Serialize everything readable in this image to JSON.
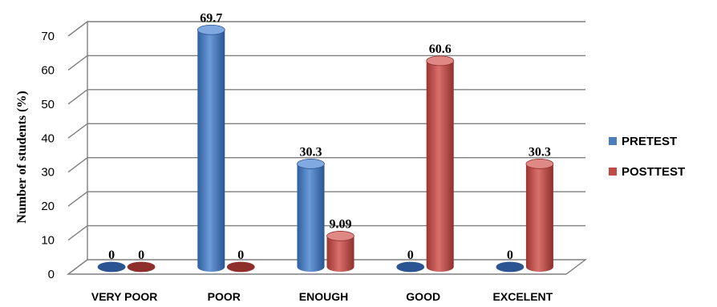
{
  "chart_data": {
    "type": "bar",
    "title": "",
    "xlabel": "",
    "ylabel": "Number of students (%)",
    "ylim": [
      0,
      70
    ],
    "yticks": [
      "0",
      "10",
      "20",
      "30",
      "40",
      "50",
      "60",
      "70"
    ],
    "categories": [
      "VERY POOR",
      "POOR",
      "ENOUGH",
      "GOOD",
      "EXCELENT"
    ],
    "series": [
      {
        "name": "PRETEST",
        "values": [
          0,
          69.7,
          30.3,
          0,
          0
        ],
        "labels": [
          "0",
          "69.7",
          "30.3",
          "0",
          "0"
        ],
        "color": "#4a7ebb"
      },
      {
        "name": "POSTTEST",
        "values": [
          0,
          0,
          9.09,
          60.6,
          30.3
        ],
        "labels": [
          "0",
          "0",
          "9.09",
          "60.6",
          "30.3"
        ],
        "color": "#be4b48"
      }
    ],
    "grid": true,
    "legend_position": "right",
    "style": "3d-cylinder"
  }
}
